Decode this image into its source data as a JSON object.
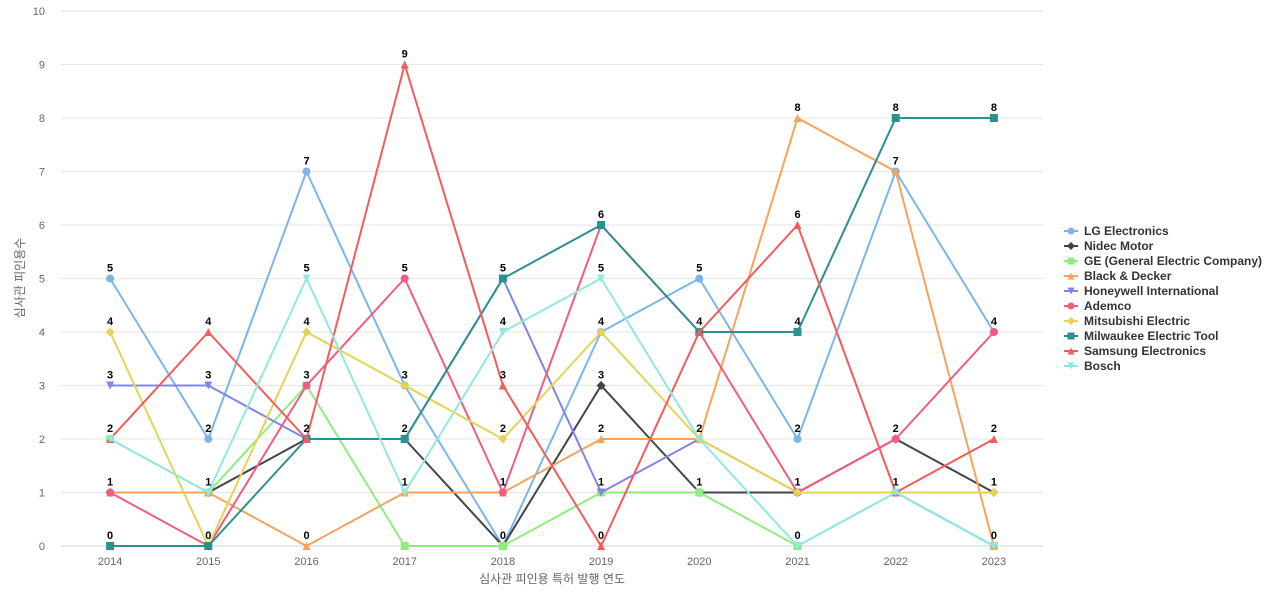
{
  "chart_data": {
    "type": "line",
    "title": "",
    "xlabel": "심사관 피인용 특허 발행 연도",
    "ylabel": "심사관 피인용수",
    "ylim": [
      0,
      10
    ],
    "yticks": [
      0,
      1,
      2,
      3,
      4,
      5,
      6,
      7,
      8,
      9,
      10
    ],
    "grid": true,
    "legend_position": "right",
    "categories": [
      "2014",
      "2015",
      "2016",
      "2017",
      "2018",
      "2019",
      "2020",
      "2021",
      "2022",
      "2023"
    ],
    "series": [
      {
        "name": "LG Electronics",
        "color": "#7cb5ec",
        "marker": "circle",
        "values": [
          5,
          2,
          7,
          3,
          0,
          4,
          5,
          2,
          7,
          4
        ],
        "labeled": true
      },
      {
        "name": "Nidec Motor",
        "color": "#434348",
        "marker": "diamond",
        "values": [
          1,
          1,
          2,
          2,
          0,
          3,
          1,
          1,
          2,
          1
        ],
        "labeled": true
      },
      {
        "name": "GE (General Electric Company)",
        "color": "#90ed7d",
        "marker": "square",
        "values": [
          2,
          1,
          3,
          0,
          0,
          1,
          1,
          0,
          1,
          0
        ],
        "labeled": false
      },
      {
        "name": "Black & Decker",
        "color": "#f7a35c",
        "marker": "triangle",
        "values": [
          1,
          1,
          0,
          1,
          1,
          2,
          2,
          8,
          7,
          0
        ],
        "labeled": true
      },
      {
        "name": "Honeywell International",
        "color": "#8085e9",
        "marker": "triangle-down",
        "values": [
          3,
          3,
          2,
          2,
          5,
          1,
          2,
          1,
          1,
          0
        ],
        "labeled": true
      },
      {
        "name": "Ademco",
        "color": "#f15c80",
        "marker": "circle",
        "values": [
          1,
          0,
          3,
          5,
          1,
          6,
          4,
          1,
          2,
          4
        ],
        "labeled": true
      },
      {
        "name": "Mitsubishi Electric",
        "color": "#e4d354",
        "marker": "diamond",
        "values": [
          4,
          0,
          4,
          3,
          2,
          4,
          2,
          1,
          1,
          1
        ],
        "labeled": true
      },
      {
        "name": "Milwaukee Electric Tool",
        "color": "#2b908f",
        "marker": "square",
        "values": [
          0,
          0,
          2,
          2,
          5,
          6,
          4,
          4,
          8,
          8
        ],
        "labeled": true
      },
      {
        "name": "Samsung Electronics",
        "color": "#f45b5b",
        "marker": "triangle",
        "values": [
          2,
          4,
          2,
          9,
          3,
          0,
          4,
          6,
          1,
          2
        ],
        "labeled": true
      },
      {
        "name": "Bosch",
        "color": "#91e8e1",
        "marker": "triangle-down",
        "values": [
          2,
          1,
          5,
          1,
          4,
          5,
          2,
          0,
          1,
          0
        ],
        "labeled": true
      }
    ]
  }
}
